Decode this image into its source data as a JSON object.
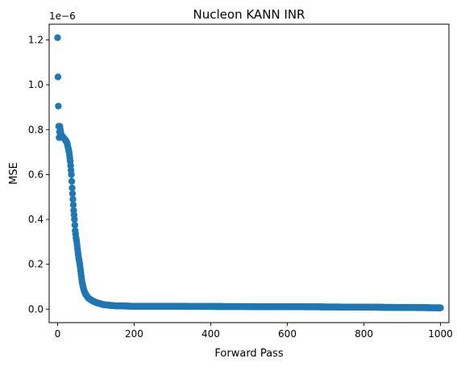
{
  "chart_data": {
    "type": "scatter",
    "title": "Nucleon KANN INR",
    "xlabel": "Forward Pass",
    "ylabel": "MSE",
    "offset_text": "1e−6",
    "xlim": [
      -22,
      1022
    ],
    "ylim": [
      -0.06,
      1.27
    ],
    "xticks": [
      0,
      200,
      400,
      600,
      800,
      1000
    ],
    "yticks": [
      0.0,
      0.2,
      0.4,
      0.6,
      0.8,
      1.0,
      1.2
    ],
    "xtick_labels": [
      "0",
      "200",
      "400",
      "600",
      "800",
      "1000"
    ],
    "ytick_labels": [
      "0.0",
      "0.2",
      "0.4",
      "0.6",
      "0.8",
      "1.0",
      "1.2"
    ],
    "grid": false,
    "marker_color": "#1f77b4",
    "anchors": [
      [
        0,
        1.21
      ],
      [
        1,
        1.035
      ],
      [
        2,
        0.905
      ],
      [
        3,
        0.815
      ],
      [
        4,
        0.765
      ],
      [
        6,
        0.815
      ],
      [
        8,
        0.79
      ],
      [
        10,
        0.775
      ],
      [
        15,
        0.765
      ],
      [
        20,
        0.755
      ],
      [
        25,
        0.74
      ],
      [
        30,
        0.7
      ],
      [
        33,
        0.66
      ],
      [
        36,
        0.6
      ],
      [
        38,
        0.54
      ],
      [
        40,
        0.49
      ],
      [
        42,
        0.44
      ],
      [
        44,
        0.4
      ],
      [
        46,
        0.35
      ],
      [
        48,
        0.32
      ],
      [
        50,
        0.3
      ],
      [
        52,
        0.27
      ],
      [
        55,
        0.23
      ],
      [
        58,
        0.2
      ],
      [
        61,
        0.16
      ],
      [
        64,
        0.12
      ],
      [
        68,
        0.09
      ],
      [
        72,
        0.07
      ],
      [
        80,
        0.05
      ],
      [
        90,
        0.038
      ],
      [
        100,
        0.03
      ],
      [
        120,
        0.02
      ],
      [
        150,
        0.015
      ],
      [
        200,
        0.013
      ],
      [
        400,
        0.012
      ],
      [
        600,
        0.011
      ],
      [
        800,
        0.009
      ],
      [
        1000,
        0.006
      ]
    ]
  }
}
